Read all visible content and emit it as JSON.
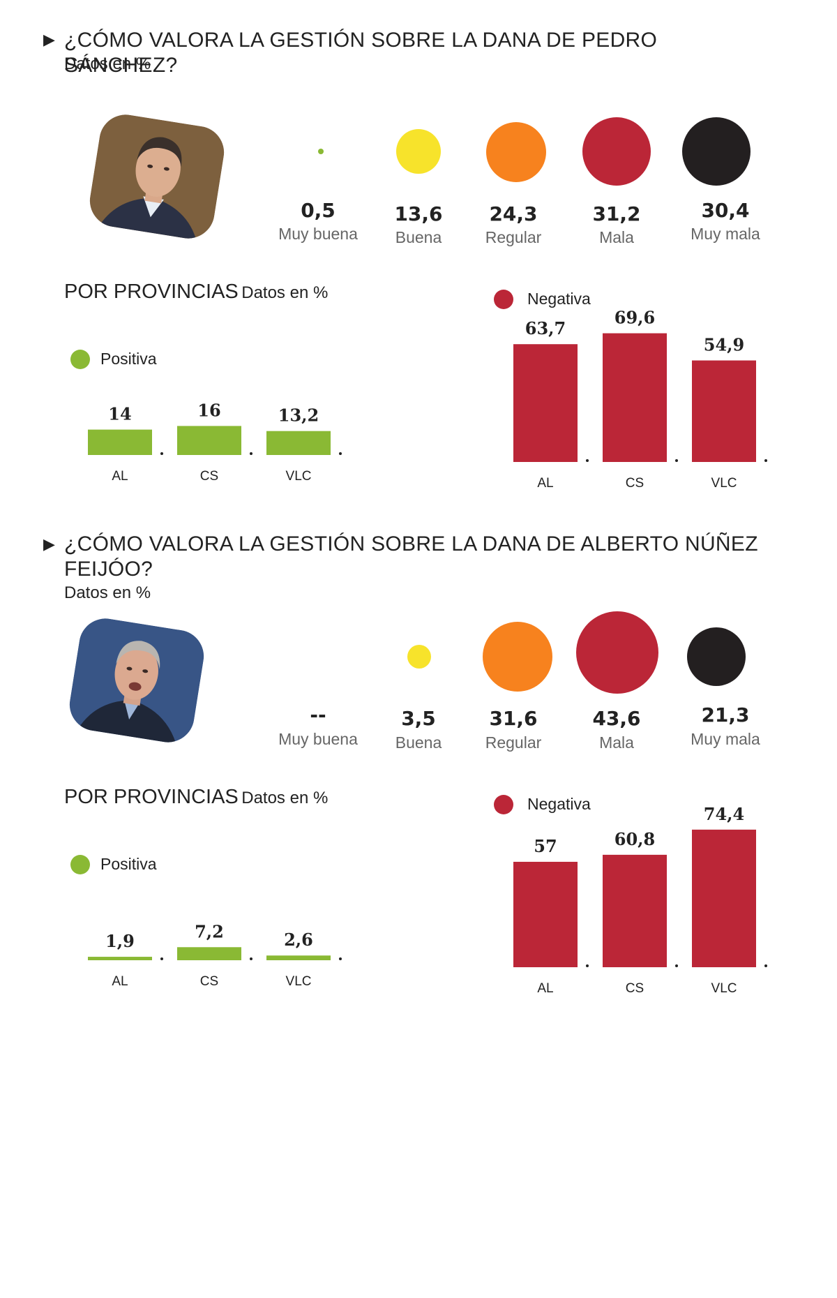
{
  "sections": [
    {
      "title": "¿CÓMO VALORA LA GESTIÓN SOBRE LA DANA DE PEDRO SÁNCHEZ?",
      "subtitle": "Datos en %",
      "ratings": [
        {
          "label": "Muy buena",
          "value_text": "0,5",
          "value": 0.5,
          "color": "#8ab934"
        },
        {
          "label": "Buena",
          "value_text": "13,6",
          "value": 13.6,
          "color": "#f7e32b"
        },
        {
          "label": "Regular",
          "value_text": "24,3",
          "value": 24.3,
          "color": "#f7821e"
        },
        {
          "label": "Mala",
          "value_text": "31,2",
          "value": 31.2,
          "color": "#bb2637"
        },
        {
          "label": "Muy mala",
          "value_text": "30,4",
          "value": 30.4,
          "color": "#231f20"
        }
      ],
      "provinces_title": "POR PROVINCIAS",
      "provinces_unit": "Datos en %",
      "positive_label": "Positiva",
      "negative_label": "Negativa"
    },
    {
      "title": "¿CÓMO VALORA LA GESTIÓN SOBRE LA DANA DE ALBERTO NÚÑEZ FEIJÓO?",
      "subtitle": "Datos en %",
      "ratings": [
        {
          "label": "Muy buena",
          "value_text": "--",
          "value": null,
          "color": "#8ab934"
        },
        {
          "label": "Buena",
          "value_text": "3,5",
          "value": 3.5,
          "color": "#f7e32b"
        },
        {
          "label": "Regular",
          "value_text": "31,6",
          "value": 31.6,
          "color": "#f7821e"
        },
        {
          "label": "Mala",
          "value_text": "43,6",
          "value": 43.6,
          "color": "#bb2637"
        },
        {
          "label": "Muy mala",
          "value_text": "21,3",
          "value": 21.3,
          "color": "#231f20"
        }
      ],
      "provinces_title": "POR PROVINCIAS",
      "provinces_unit": "Datos en %",
      "positive_label": "Positiva",
      "negative_label": "Negativa"
    }
  ],
  "colors": {
    "positive": "#8ab934",
    "negative": "#bb2637"
  },
  "chart_data": [
    {
      "type": "bar",
      "categories": [
        "AL",
        "CS",
        "VLC"
      ],
      "series": [
        {
          "name": "Positiva",
          "values": [
            14,
            16,
            13.2
          ],
          "labels": [
            "14",
            "16",
            "13,2"
          ]
        }
      ]
    },
    {
      "type": "bar",
      "categories": [
        "AL",
        "CS",
        "VLC"
      ],
      "series": [
        {
          "name": "Negativa",
          "values": [
            63.7,
            69.6,
            54.9
          ],
          "labels": [
            "63,7",
            "69,6",
            "54,9"
          ]
        }
      ]
    },
    {
      "type": "bar",
      "categories": [
        "AL",
        "CS",
        "VLC"
      ],
      "series": [
        {
          "name": "Positiva",
          "values": [
            1.9,
            7.2,
            2.6
          ],
          "labels": [
            "1,9",
            "7,2",
            "2,6"
          ]
        }
      ]
    },
    {
      "type": "bar",
      "categories": [
        "AL",
        "CS",
        "VLC"
      ],
      "series": [
        {
          "name": "Negativa",
          "values": [
            57,
            60.8,
            74.4
          ],
          "labels": [
            "57",
            "60,8",
            "74,4"
          ]
        }
      ]
    }
  ]
}
